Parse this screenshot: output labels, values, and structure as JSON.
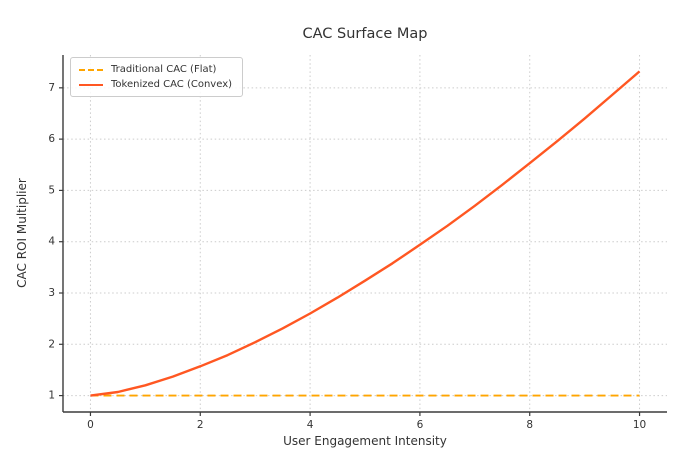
{
  "chart_data": {
    "type": "line",
    "title": "CAC Surface Map",
    "xlabel": "User Engagement Intensity",
    "ylabel": "CAC ROI Multiplier",
    "xlim": [
      -0.5,
      10.5
    ],
    "ylim": [
      0.68,
      7.64
    ],
    "x_ticks": [
      0,
      2,
      4,
      6,
      8,
      10
    ],
    "y_ticks": [
      1,
      2,
      3,
      4,
      5,
      6,
      7
    ],
    "grid": "dotted",
    "grid_color": "#cccccc",
    "spine_color": "#3b3b3b",
    "text_color": "#333333",
    "legend_position": "upper left",
    "series": [
      {
        "name": "Traditional CAC (Flat)",
        "style": "dashed",
        "color": "#FFA500",
        "x": [
          0,
          10
        ],
        "values": [
          1.0,
          1.0
        ]
      },
      {
        "name": "Tokenized CAC (Convex)",
        "style": "solid",
        "color": "#FF5722",
        "x": [
          0,
          0.5,
          1,
          1.5,
          2,
          2.5,
          3,
          3.5,
          4,
          4.5,
          5,
          5.5,
          6,
          6.5,
          7,
          7.5,
          8,
          8.5,
          9,
          9.5,
          10
        ],
        "values": [
          1.0,
          1.07,
          1.2,
          1.37,
          1.57,
          1.79,
          2.04,
          2.31,
          2.6,
          2.91,
          3.24,
          3.58,
          3.94,
          4.31,
          4.7,
          5.11,
          5.53,
          5.96,
          6.4,
          6.86,
          7.32
        ]
      }
    ]
  }
}
